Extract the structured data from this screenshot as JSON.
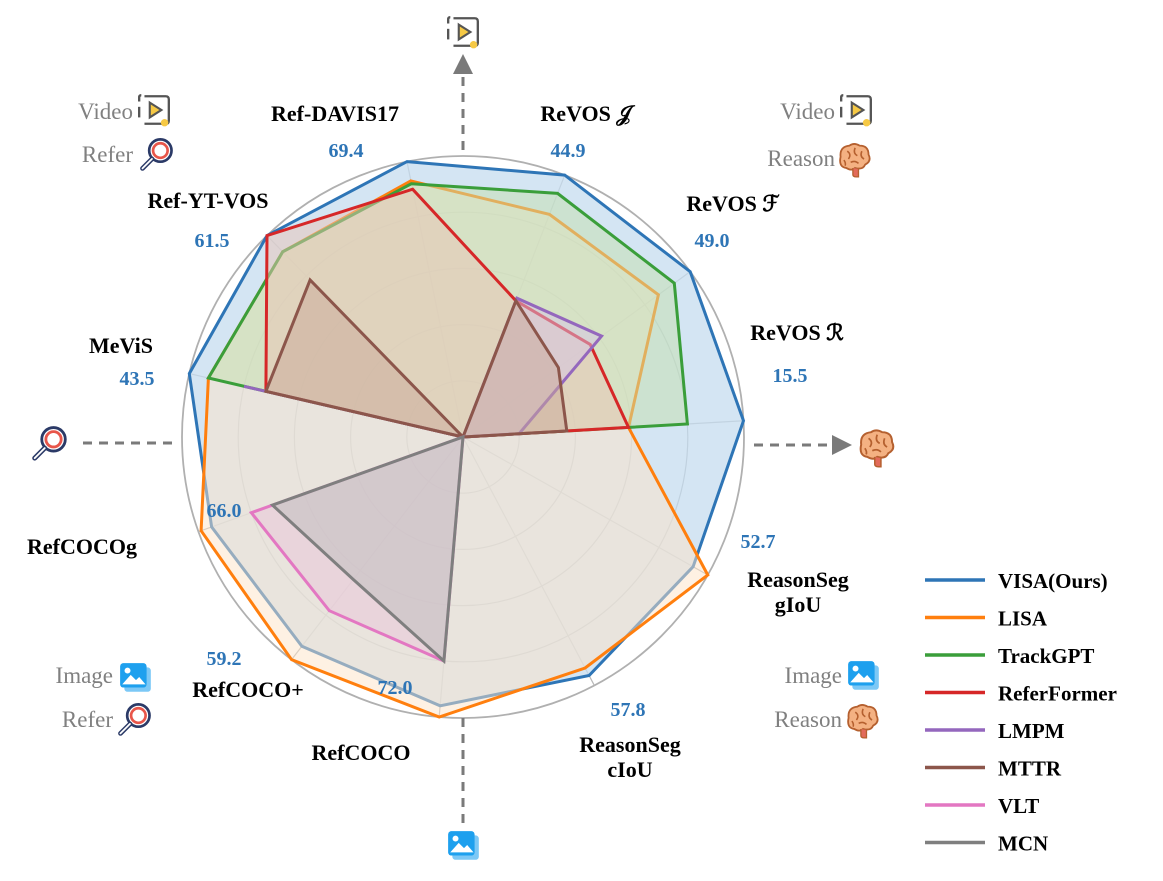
{
  "chart_data": {
    "type": "radar",
    "axes": [
      {
        "name": "Ref-DAVIS17",
        "value_label": "69.4"
      },
      {
        "name": "ReVOS 𝒥",
        "value_label": "44.9"
      },
      {
        "name": "ReVOS  ℱ",
        "value_label": "49.0"
      },
      {
        "name": "ReVOS  ℛ",
        "value_label": "15.5"
      },
      {
        "name": "ReasonSeg\ngIoU",
        "value_label": "52.7"
      },
      {
        "name": "ReasonSeg\ncIoU",
        "value_label": "57.8"
      },
      {
        "name": "RefCOCO",
        "value_label": "72.0"
      },
      {
        "name": "RefCOCO+",
        "value_label": "59.2"
      },
      {
        "name": "RefCOCOg",
        "value_label": "66.0"
      },
      {
        "name": "MeViS",
        "value_label": "43.5"
      },
      {
        "name": "Ref-YT-VOS",
        "value_label": "61.5"
      }
    ],
    "radial_range": [
      0,
      1
    ],
    "rings": 5,
    "grid": true,
    "legend_position": "bottom-right",
    "series": [
      {
        "name": "VISA(Ours)",
        "color": "#2e75b6",
        "fill": "#c5dcef",
        "values": [
          1.0,
          1.0,
          1.0,
          1.0,
          0.94,
          0.96,
          0.96,
          0.94,
          0.95,
          1.0,
          1.0
        ]
      },
      {
        "name": "LISA",
        "color": "#ff7f0e",
        "fill": "#fde3c8",
        "values": [
          0.93,
          0.85,
          0.86,
          0.59,
          1.0,
          0.93,
          1.0,
          1.0,
          0.99,
          0.93,
          0.92
        ]
      },
      {
        "name": "TrackGPT",
        "color": "#3a9e3a",
        "fill": "#c4dfae",
        "values": [
          0.92,
          0.93,
          0.93,
          0.8,
          0,
          0,
          0,
          0,
          0,
          0.93,
          0.92
        ]
      },
      {
        "name": "ReferFormer",
        "color": "#d62728",
        "fill": "#e9c4b6",
        "values": [
          0.9,
          0.52,
          0.56,
          0.59,
          0,
          0,
          0,
          0,
          0,
          0.72,
          1.0
        ]
      },
      {
        "name": "LMPM",
        "color": "#9467bd",
        "fill": "#d3c4e6",
        "values": [
          0,
          0.53,
          0.61,
          0.2,
          0,
          0,
          0,
          0,
          0,
          0.8,
          0
        ]
      },
      {
        "name": "MTTR",
        "color": "#8c564b",
        "fill": "#c9a99a",
        "values": [
          0,
          0.52,
          0.42,
          0.37,
          0,
          0,
          0,
          0,
          0,
          0.72,
          0.78
        ]
      },
      {
        "name": "VLT",
        "color": "#e377c2",
        "fill": "#e9c4da",
        "values": [
          0,
          0,
          0,
          0,
          0,
          0,
          0.8,
          0.78,
          0.8,
          0,
          0
        ]
      },
      {
        "name": "MCN",
        "color": "#7f7f7f",
        "fill": "#bdbdbd",
        "values": [
          0,
          0,
          0,
          0,
          0,
          0,
          0.8,
          0.64,
          0.72,
          0,
          0
        ]
      }
    ],
    "quadrant_labels": [
      {
        "lines": [
          "Video",
          "Refer"
        ],
        "icons": [
          "video-icon",
          "search-icon"
        ],
        "position": "top-left"
      },
      {
        "lines": [
          "Video",
          "Reason"
        ],
        "icons": [
          "video-icon",
          "brain-icon"
        ],
        "position": "top-right"
      },
      {
        "lines": [
          "Image",
          "Refer"
        ],
        "icons": [
          "image-icon",
          "search-icon"
        ],
        "position": "bottom-left"
      },
      {
        "lines": [
          "Image",
          "Reason"
        ],
        "icons": [
          "image-icon",
          "brain-icon"
        ],
        "position": "bottom-right"
      }
    ],
    "divider_arrows": [
      {
        "direction": "up",
        "icon": "video-icon"
      },
      {
        "direction": "right",
        "icon": "brain-icon"
      },
      {
        "direction": "down",
        "icon": "image-icon"
      },
      {
        "direction": "left",
        "icon": "search-icon"
      }
    ]
  }
}
